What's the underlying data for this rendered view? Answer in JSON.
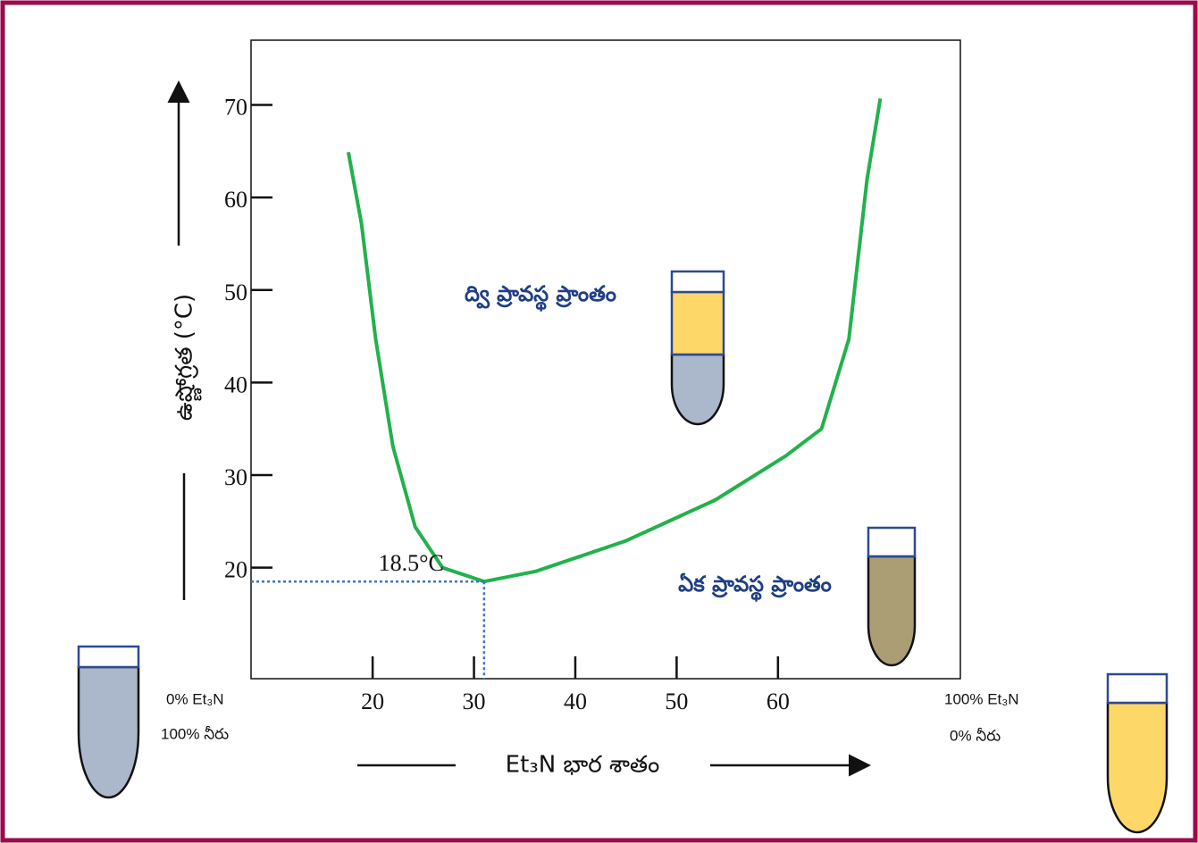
{
  "chart_data": {
    "type": "line",
    "y_label": "ఉష్ణోగ్రత (°C)",
    "x_label": "Et₃N భార శాతం",
    "x": [
      17.6,
      18.9,
      20.3,
      22.0,
      24.2,
      26.9,
      31.0,
      36.1,
      45.0,
      53.8,
      60.8,
      64.3,
      67.0,
      68.8,
      70.1
    ],
    "series": [
      {
        "color": "#22b14c",
        "values": [
          64.9,
          57.2,
          44.7,
          33.1,
          24.4,
          20.0,
          18.5,
          19.6,
          22.9,
          27.3,
          32.1,
          35.0,
          44.7,
          62.0,
          70.7
        ]
      }
    ],
    "xlim": [
      8,
      78
    ],
    "xticks": [
      20,
      30,
      40,
      50,
      60
    ],
    "ylim": [
      8,
      77
    ],
    "yticks": [
      20,
      30,
      40,
      50,
      60,
      70
    ],
    "annotations": {
      "minimum": "18.5°C",
      "two_phase": "ద్వి ప్రావస్థ ప్రాంతం",
      "one_phase": "ఏక ప్రావస్థ ప్రాంతం",
      "left_top": "0% Et₃N",
      "left_bottom": "100% నీరు",
      "right_top": "100% Et₃N",
      "right_bottom": "0% నీరు"
    }
  }
}
